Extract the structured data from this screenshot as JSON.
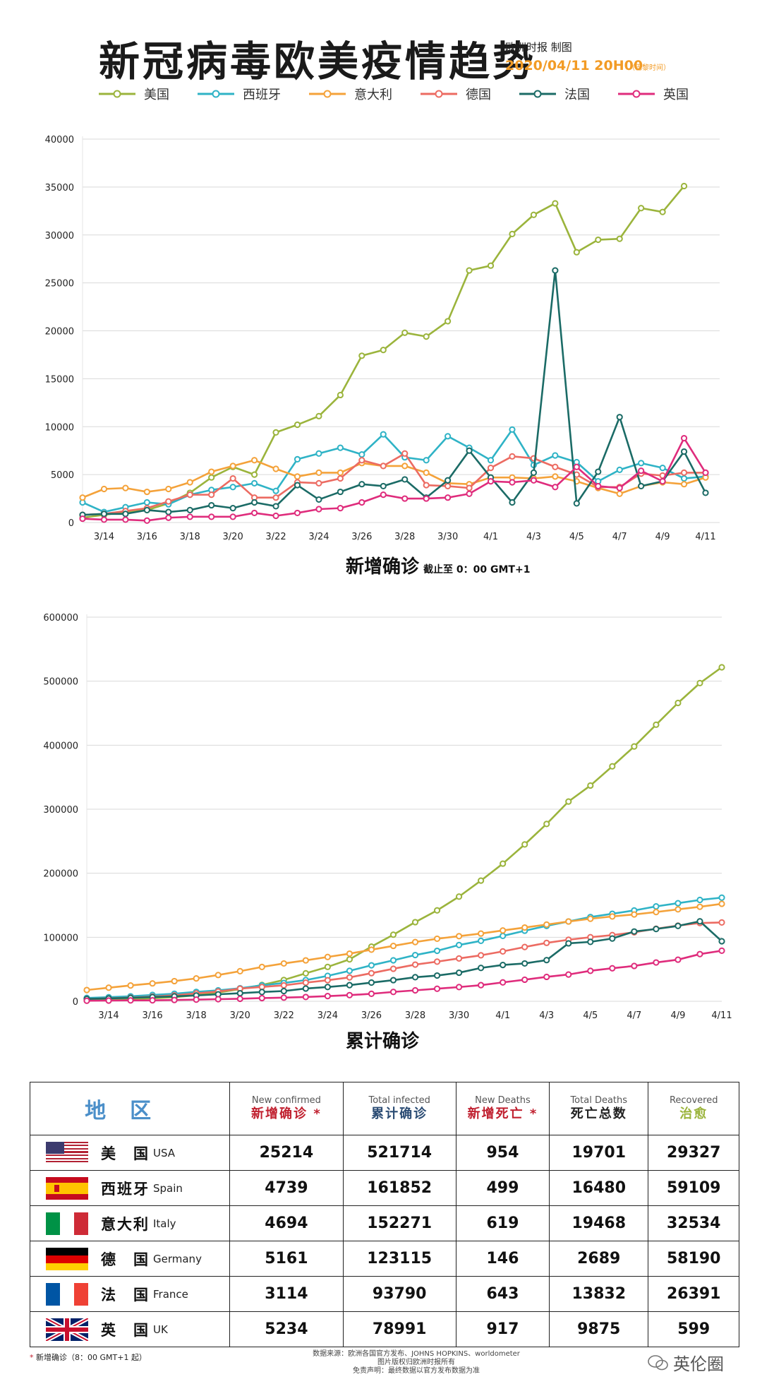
{
  "header": {
    "title": "新冠病毒欧美疫情趋势",
    "credit": "欧洲时报 制图",
    "datetime": "2020/04/11 20H00",
    "timezone": "（巴黎时间）"
  },
  "colors": {
    "美国": "#9bb43c",
    "西班牙": "#2fb3c6",
    "意大利": "#f4a23a",
    "德国": "#ec6b62",
    "法国": "#1b6b66",
    "英国": "#df2c7c",
    "grid": "#d9d9d9",
    "red": "#c0202f",
    "navy": "#2a4b73",
    "green": "#9bb43c"
  },
  "chart_data": [
    {
      "type": "line",
      "title": "新增确诊",
      "subtitle": "截止至 0：00 GMT+1",
      "x": [
        "3/13",
        "3/14",
        "3/15",
        "3/16",
        "3/17",
        "3/18",
        "3/19",
        "3/20",
        "3/21",
        "3/22",
        "3/23",
        "3/24",
        "3/25",
        "3/26",
        "3/27",
        "3/28",
        "3/29",
        "3/30",
        "3/31",
        "4/1",
        "4/2",
        "4/3",
        "4/4",
        "4/5",
        "4/6",
        "4/7",
        "4/8",
        "4/9",
        "4/10",
        "4/11"
      ],
      "xticks": [
        "3/14",
        "3/16",
        "3/18",
        "3/20",
        "3/22",
        "3/24",
        "3/26",
        "3/28",
        "3/30",
        "4/1",
        "4/3",
        "4/5",
        "4/7",
        "4/9",
        "4/11"
      ],
      "ylim": [
        0,
        40000
      ],
      "yticks": [
        "0",
        "5000",
        "10000",
        "15000",
        "20000",
        "25000",
        "30000",
        "35000",
        "40000"
      ],
      "series": [
        {
          "name": "美国",
          "values": [
            500,
            800,
            1100,
            1300,
            2000,
            3100,
            4700,
            5800,
            5000,
            9400,
            10200,
            11100,
            13300,
            17400,
            18000,
            19800,
            19400,
            21000,
            26300,
            26800,
            30100,
            32100,
            33300,
            28200,
            29500,
            29600,
            32800,
            32400,
            35100,
            null
          ]
        },
        {
          "name": "西班牙",
          "values": [
            2100,
            1100,
            1600,
            2100,
            1900,
            2900,
            3400,
            3700,
            4100,
            3300,
            6600,
            7200,
            7800,
            7100,
            9200,
            6800,
            6500,
            9000,
            7800,
            6500,
            9700,
            6000,
            7000,
            6300,
            4300,
            5500,
            6200,
            5700,
            4600,
            4800
          ]
        },
        {
          "name": "意大利",
          "values": [
            2600,
            3500,
            3600,
            3200,
            3500,
            4200,
            5300,
            5900,
            6500,
            5600,
            4800,
            5200,
            5200,
            6200,
            5900,
            5900,
            5200,
            4100,
            4000,
            4700,
            4700,
            4600,
            4800,
            4300,
            3600,
            3000,
            3800,
            4200,
            4000,
            4700
          ]
        },
        {
          "name": "德国",
          "values": [
            800,
            900,
            1200,
            1500,
            2200,
            2900,
            2900,
            4600,
            2600,
            2600,
            4200,
            4100,
            4600,
            6500,
            5900,
            7200,
            3900,
            3800,
            3600,
            5700,
            6900,
            6700,
            5800,
            5000,
            3700,
            3700,
            5100,
            4900,
            5200,
            5200
          ]
        },
        {
          "name": "法国",
          "values": [
            800,
            900,
            900,
            1300,
            1100,
            1300,
            1800,
            1500,
            2100,
            1700,
            3900,
            2400,
            3200,
            4000,
            3800,
            4500,
            2600,
            4400,
            7500,
            4700,
            2100,
            5200,
            26300,
            2000,
            5300,
            11000,
            3800,
            4300,
            7400,
            3100
          ]
        },
        {
          "name": "英国",
          "values": [
            400,
            300,
            300,
            200,
            500,
            600,
            600,
            600,
            1000,
            700,
            1000,
            1400,
            1500,
            2100,
            2900,
            2500,
            2500,
            2600,
            3000,
            4300,
            4200,
            4400,
            3700,
            5800,
            3800,
            3600,
            5400,
            4300,
            8800,
            5200
          ]
        }
      ]
    },
    {
      "type": "line",
      "title": "累计确诊",
      "x": [
        "3/13",
        "3/14",
        "3/15",
        "3/16",
        "3/17",
        "3/18",
        "3/19",
        "3/20",
        "3/21",
        "3/22",
        "3/23",
        "3/24",
        "3/25",
        "3/26",
        "3/27",
        "3/28",
        "3/29",
        "3/30",
        "3/31",
        "4/1",
        "4/2",
        "4/3",
        "4/4",
        "4/5",
        "4/6",
        "4/7",
        "4/8",
        "4/9",
        "4/10",
        "4/11"
      ],
      "xticks": [
        "3/14",
        "3/16",
        "3/18",
        "3/20",
        "3/22",
        "3/24",
        "3/26",
        "3/28",
        "3/30",
        "4/1",
        "4/3",
        "4/5",
        "4/7",
        "4/9",
        "4/11"
      ],
      "ylim": [
        0,
        600000
      ],
      "yticks": [
        "0",
        "100000",
        "200000",
        "300000",
        "400000",
        "500000",
        "600000"
      ],
      "series": [
        {
          "name": "美国",
          "values": [
            2200,
            2900,
            3500,
            4600,
            6400,
            9400,
            13700,
            19100,
            25500,
            33300,
            43700,
            53700,
            65500,
            85400,
            104000,
            123600,
            142000,
            163500,
            188500,
            215000,
            245000,
            277000,
            312000,
            337000,
            367000,
            398000,
            432000,
            466000,
            497000,
            521714
          ]
        },
        {
          "name": "西班牙",
          "values": [
            5200,
            6400,
            7800,
            9900,
            11800,
            14700,
            17100,
            20400,
            24900,
            28600,
            33100,
            39700,
            47600,
            56200,
            64000,
            72200,
            78800,
            87900,
            94400,
            102100,
            110200,
            117700,
            124700,
            131600,
            136700,
            141900,
            148200,
            153200,
            158300,
            161852
          ]
        },
        {
          "name": "意大利",
          "values": [
            17600,
            21200,
            24700,
            27900,
            31500,
            35700,
            41000,
            47000,
            53600,
            59100,
            63900,
            69200,
            74400,
            80600,
            86500,
            92500,
            97700,
            101700,
            105800,
            110600,
            115200,
            119800,
            124600,
            128900,
            132500,
            135600,
            139400,
            143600,
            147600,
            152271
          ]
        },
        {
          "name": "德国",
          "values": [
            3700,
            4600,
            5800,
            7300,
            9300,
            12300,
            15300,
            19800,
            22400,
            24900,
            29100,
            32900,
            37300,
            43900,
            50800,
            57300,
            61900,
            66900,
            71800,
            77900,
            84800,
            91200,
            96100,
            100100,
            103400,
            107700,
            113300,
            118200,
            122200,
            123115
          ]
        },
        {
          "name": "法国",
          "values": [
            3700,
            4500,
            5400,
            6600,
            7700,
            9100,
            10900,
            12600,
            14500,
            16000,
            19900,
            22300,
            25200,
            29200,
            33000,
            37600,
            40200,
            44600,
            52100,
            56700,
            59100,
            64300,
            90500,
            92800,
            98000,
            109000,
            112900,
            117700,
            124900,
            93790
          ]
        },
        {
          "name": "英国",
          "values": [
            800,
            1100,
            1400,
            1500,
            2000,
            2600,
            3300,
            3900,
            5000,
            5700,
            6700,
            8100,
            9600,
            11700,
            14600,
            17100,
            19600,
            22200,
            25200,
            29500,
            33700,
            38100,
            41800,
            47600,
            51600,
            55200,
            60600,
            65000,
            73700,
            78991
          ]
        }
      ]
    }
  ],
  "table": {
    "region_header": "地区",
    "columns": [
      {
        "en": "New confirmed",
        "cn": "新增确诊 *",
        "color": "#c0202f"
      },
      {
        "en": "Total infected",
        "cn": "累计确诊",
        "color": "#2a4b73"
      },
      {
        "en": "New Deaths",
        "cn": "新增死亡 *",
        "color": "#c0202f"
      },
      {
        "en": "Total Deaths",
        "cn": "死亡总数",
        "color": "#222222"
      },
      {
        "en": "Recovered",
        "cn": "治愈",
        "color": "#9bb43c"
      }
    ],
    "rows": [
      {
        "cn": "美　国",
        "en": "USA",
        "flag": "us-flag",
        "values": [
          "25214",
          "521714",
          "954",
          "19701",
          "29327"
        ]
      },
      {
        "cn": "西班牙",
        "en": "Spain",
        "flag": "es-flag",
        "values": [
          "4739",
          "161852",
          "499",
          "16480",
          "59109"
        ]
      },
      {
        "cn": "意大利",
        "en": "Italy",
        "flag": "it-flag",
        "values": [
          "4694",
          "152271",
          "619",
          "19468",
          "32534"
        ]
      },
      {
        "cn": "德　国",
        "en": "Germany",
        "flag": "de-flag",
        "values": [
          "5161",
          "123115",
          "146",
          "2689",
          "58190"
        ]
      },
      {
        "cn": "法　国",
        "en": "France",
        "flag": "fr-flag",
        "values": [
          "3114",
          "93790",
          "643",
          "13832",
          "26391"
        ]
      },
      {
        "cn": "英　国",
        "en": "UK",
        "flag": "uk-flag",
        "values": [
          "5234",
          "78991",
          "917",
          "9875",
          "599"
        ]
      }
    ]
  },
  "footer": {
    "star": "*",
    "note": "新增确诊（8：00 GMT+1 起）",
    "source_line1": "数据来源：欧洲各国官方发布、JOHNS HOPKINS、worldometer",
    "source_line2": "图片版权归欧洲时报所有",
    "source_line3": "免责声明：最终数据以官方发布数据为准",
    "brand": "英伦圈"
  }
}
